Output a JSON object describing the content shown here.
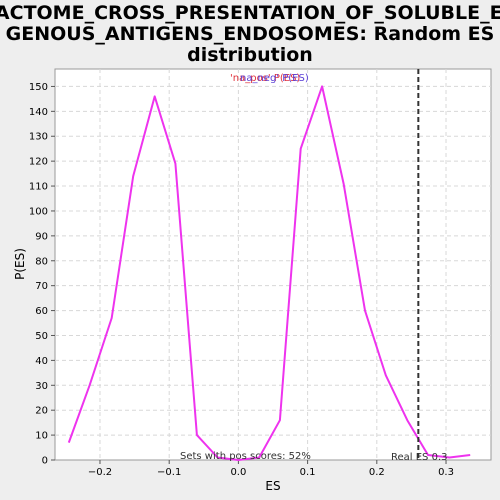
{
  "chart_data": {
    "type": "line",
    "title_lines": [
      "REACTOME_CROSS_PRESENTATION_OF_SOLUBLE_EXO",
      "GENOUS_ANTIGENS_ENDOSOMES: Random ES",
      "distribution"
    ],
    "xlabel": "ES",
    "ylabel": "P(ES)",
    "xlim": [
      -0.265,
      0.365
    ],
    "ylim": [
      0,
      157
    ],
    "x_ticks": [
      -0.2,
      -0.1,
      0.0,
      0.1,
      0.2,
      0.3
    ],
    "x_tick_labels": [
      "−0.2",
      "−0.1",
      "0.0",
      "0.1",
      "0.2",
      "0.3"
    ],
    "y_ticks": [
      0,
      10,
      20,
      30,
      40,
      50,
      60,
      70,
      80,
      90,
      100,
      110,
      120,
      130,
      140,
      150
    ],
    "grid": true,
    "series": [
      {
        "color": "#ee33ee",
        "x": [
          -0.245,
          -0.215,
          -0.183,
          -0.152,
          -0.121,
          -0.091,
          -0.06,
          -0.03,
          0.0,
          0.03,
          0.06,
          0.09,
          0.121,
          0.152,
          0.183,
          0.213,
          0.244,
          0.274,
          0.305,
          0.335
        ],
        "y": [
          7,
          30,
          57,
          114,
          146,
          119,
          10,
          1,
          0,
          1,
          16,
          125,
          150,
          111,
          60,
          34,
          16,
          2,
          1,
          2
        ]
      }
    ],
    "real_es": 0.26,
    "real_es_label": "Real ES 0.3",
    "pos_scores_label": "Sets with pos scores: 52%",
    "legend_overlap_a": "'na_pos' P(ES)",
    "legend_overlap_b": "na_neg' P(ES)"
  }
}
